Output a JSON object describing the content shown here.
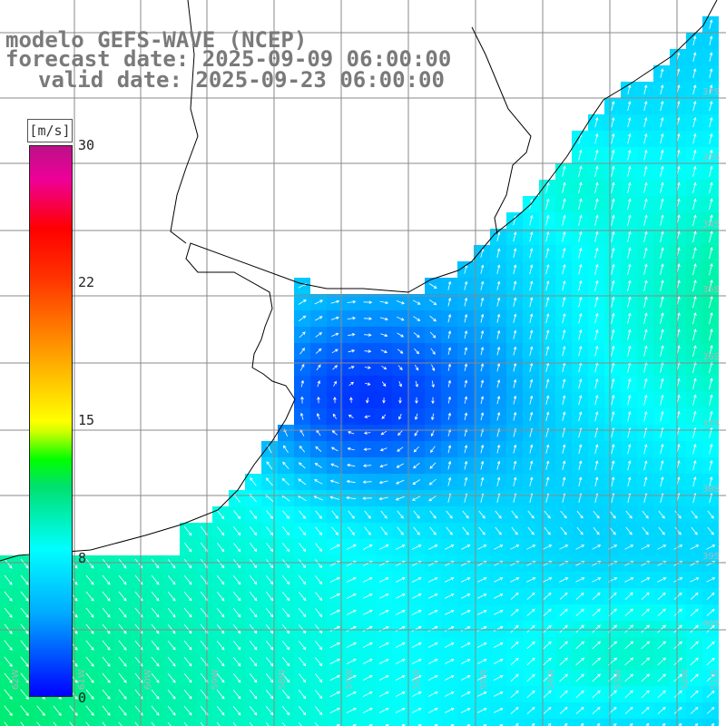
{
  "title": {
    "line1": "modelo GEFS-WAVE (NCEP)",
    "line2": "forecast date: 2025-09-09 06:00:00",
    "line3": "valid date: 2025-09-23 06:00:00"
  },
  "colorbar": {
    "unit": "[m/s]",
    "ticks": [
      "30",
      "22",
      "15",
      "8",
      "0"
    ],
    "tick_values": [
      30,
      22,
      15,
      8,
      0
    ]
  },
  "map": {
    "lat_labels": [
      "32S",
      "33S",
      "34S",
      "35S",
      "36S",
      "37S",
      "38S",
      "39S",
      "40S"
    ],
    "lon_labels": [
      "62W",
      "61W",
      "60W",
      "59W",
      "58W",
      "57W",
      "56W",
      "55W",
      "54W",
      "53W",
      "52W",
      "51W"
    ],
    "colors": {
      "land": "#ffffff",
      "grid": "#8a8a8a",
      "coast": "#000000",
      "arrows": "#ffffff"
    }
  }
}
